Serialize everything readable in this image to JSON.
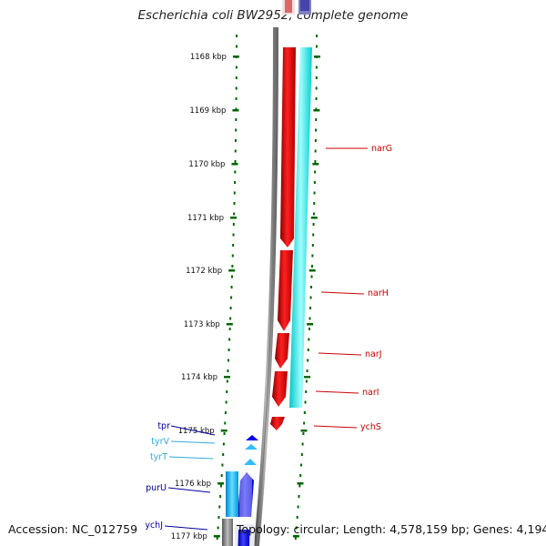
{
  "title": "Escherichia coli BW2952, complete genome",
  "footer": {
    "accession": "Accession: NC_012759",
    "stats": "Topology: circular; Length: 4,578,159 bp; Genes: 4,194"
  },
  "scale_ticks": [
    "1168 kbp",
    "1169 kbp",
    "1170 kbp",
    "1171 kbp",
    "1172 kbp",
    "1173 kbp",
    "1174 kbp",
    "1175 kbp",
    "1176 kbp",
    "1177 kbp"
  ],
  "genes": [
    {
      "name": "narG",
      "color": "#cc0000",
      "strand": "forward"
    },
    {
      "name": "narH",
      "color": "#cc0000",
      "strand": "forward"
    },
    {
      "name": "narJ",
      "color": "#cc0000",
      "strand": "forward"
    },
    {
      "name": "narI",
      "color": "#cc0000",
      "strand": "forward"
    },
    {
      "name": "ychS",
      "color": "#cc0000",
      "strand": "forward"
    },
    {
      "name": "tpr",
      "color": "#000099",
      "strand": "reverse"
    },
    {
      "name": "tyrV",
      "color": "#33aadd",
      "strand": "reverse"
    },
    {
      "name": "tyrT",
      "color": "#33aadd",
      "strand": "reverse"
    },
    {
      "name": "purU",
      "color": "#000099",
      "strand": "reverse"
    },
    {
      "name": "ychJ",
      "color": "#000099",
      "strand": "reverse"
    }
  ],
  "colors": {
    "cds_forward": "#ff0000",
    "cds_reverse": "#0000ff",
    "trna": "#33ccff",
    "gc_track": "#00e5e5",
    "backbone": "#808080",
    "dots": "#006600"
  }
}
